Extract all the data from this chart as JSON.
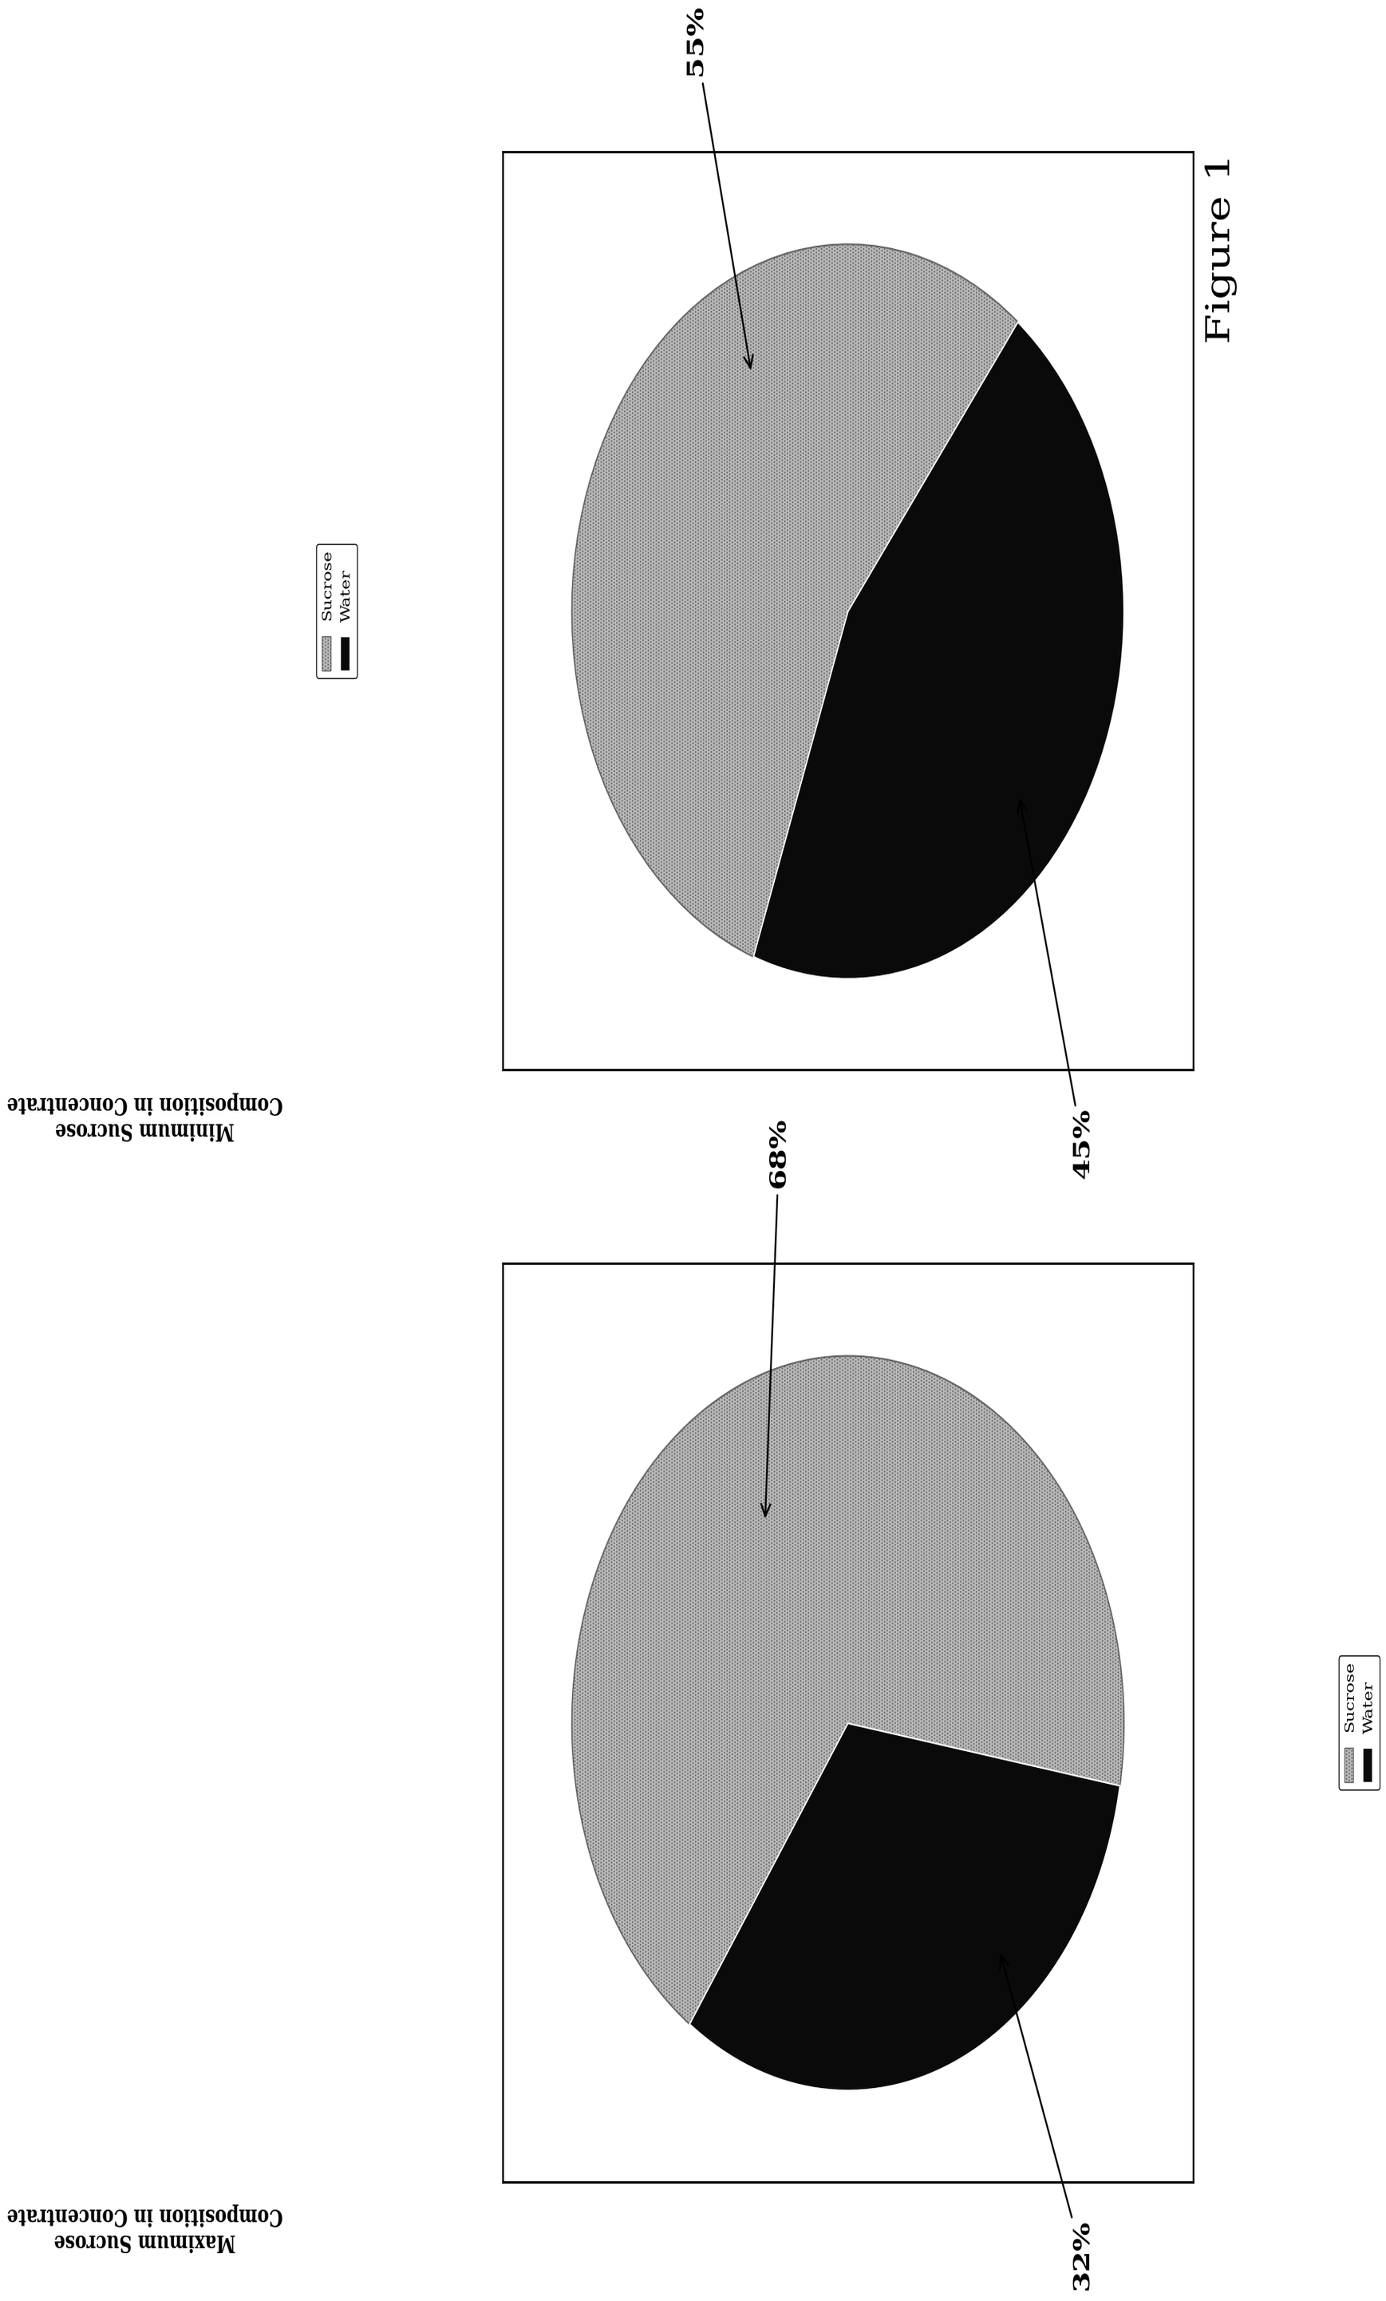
{
  "figure_title": "Figure 1",
  "chart1": {
    "title": "Maximum Sucrose\nComposition in Concentrate",
    "sucrose_pct": 68,
    "water_pct": 32,
    "sucrose_label": "68%",
    "water_label": "32%",
    "colors": [
      "#b8b8b8",
      "#0a0a0a"
    ],
    "legend_labels": [
      "Sucrose",
      "Water"
    ]
  },
  "chart2": {
    "title": "Minimum Sucrose\nComposition in Concentrate",
    "sucrose_pct": 55,
    "water_pct": 45,
    "sucrose_label": "55%",
    "water_label": "45%",
    "colors": [
      "#b8b8b8",
      "#0a0a0a"
    ],
    "legend_labels": [
      "Sucrose",
      "Water"
    ]
  },
  "background_color": "#ffffff",
  "text_color": "#000000",
  "font_size_title": 20,
  "font_size_pct": 26,
  "font_size_legend": 15,
  "font_size_figure_title": 38
}
